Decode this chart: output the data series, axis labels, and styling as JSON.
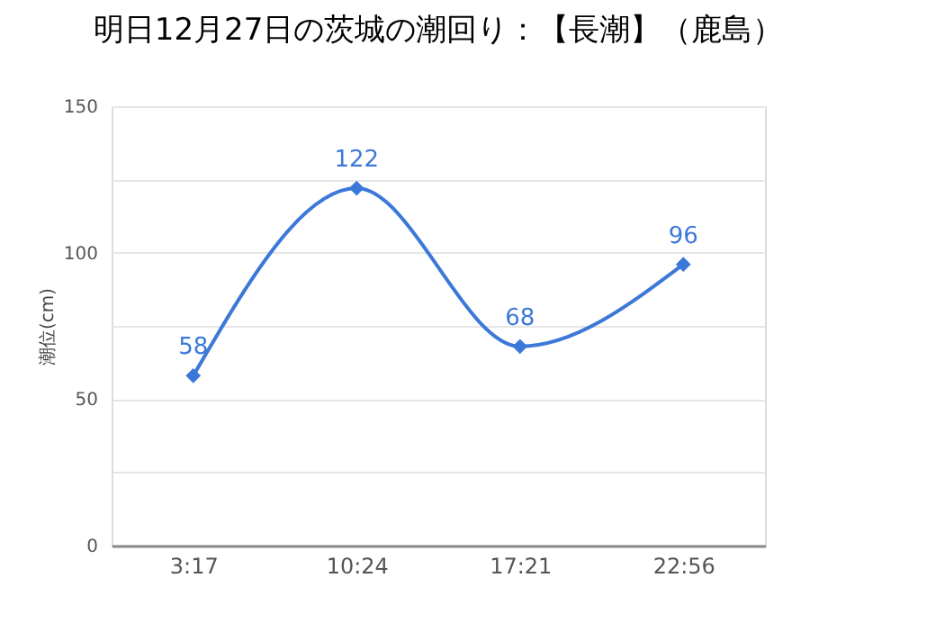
{
  "chart_data": {
    "type": "line",
    "title": "明日12月27日の茨城の潮回り：【長潮】（鹿島）",
    "ylabel": "潮位(cm)",
    "categories": [
      "3:17",
      "10:24",
      "17:21",
      "22:56"
    ],
    "series": [
      {
        "color": "#3c78d8",
        "values": [
          58,
          122,
          68,
          96
        ]
      }
    ],
    "ylim": [
      0,
      150
    ],
    "yticks": [
      0,
      {
        "value": 25,
        "label": null
      },
      50,
      {
        "value": 75,
        "label": null
      },
      100,
      {
        "value": 125,
        "label": null
      },
      150
    ],
    "grid": "y",
    "marker": "diamond",
    "line_style": "solid",
    "data_labels": true
  }
}
